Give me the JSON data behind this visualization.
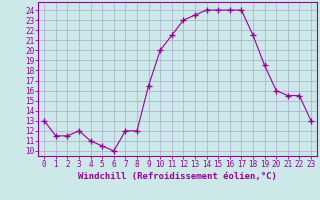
{
  "x": [
    0,
    1,
    2,
    3,
    4,
    5,
    6,
    7,
    8,
    9,
    10,
    11,
    12,
    13,
    14,
    15,
    16,
    17,
    18,
    19,
    20,
    21,
    22,
    23
  ],
  "y": [
    13,
    11.5,
    11.5,
    12,
    11,
    10.5,
    10,
    12,
    12,
    16.5,
    20,
    21.5,
    23,
    23.5,
    24,
    24,
    24,
    24,
    21.5,
    18.5,
    16,
    15.5,
    15.5,
    13
  ],
  "line_color": "#990099",
  "marker": "+",
  "bg_color": "#cce8e8",
  "grid_color": "#aaaacc",
  "xlabel": "Windchill (Refroidissement éolien,°C)",
  "xlabel_color": "#990099",
  "ylabel_ticks": [
    10,
    11,
    12,
    13,
    14,
    15,
    16,
    17,
    18,
    19,
    20,
    21,
    22,
    23,
    24
  ],
  "xlim": [
    -0.5,
    23.5
  ],
  "ylim": [
    9.5,
    24.8
  ],
  "xtick_labels": [
    "0",
    "1",
    "2",
    "3",
    "4",
    "5",
    "6",
    "7",
    "8",
    "9",
    "10",
    "11",
    "12",
    "13",
    "14",
    "15",
    "16",
    "17",
    "18",
    "19",
    "20",
    "21",
    "22",
    "23"
  ],
  "tick_color": "#990099",
  "axis_color": "#990099",
  "xlabel_fontsize": 6.5,
  "tick_fontsize": 5.5
}
